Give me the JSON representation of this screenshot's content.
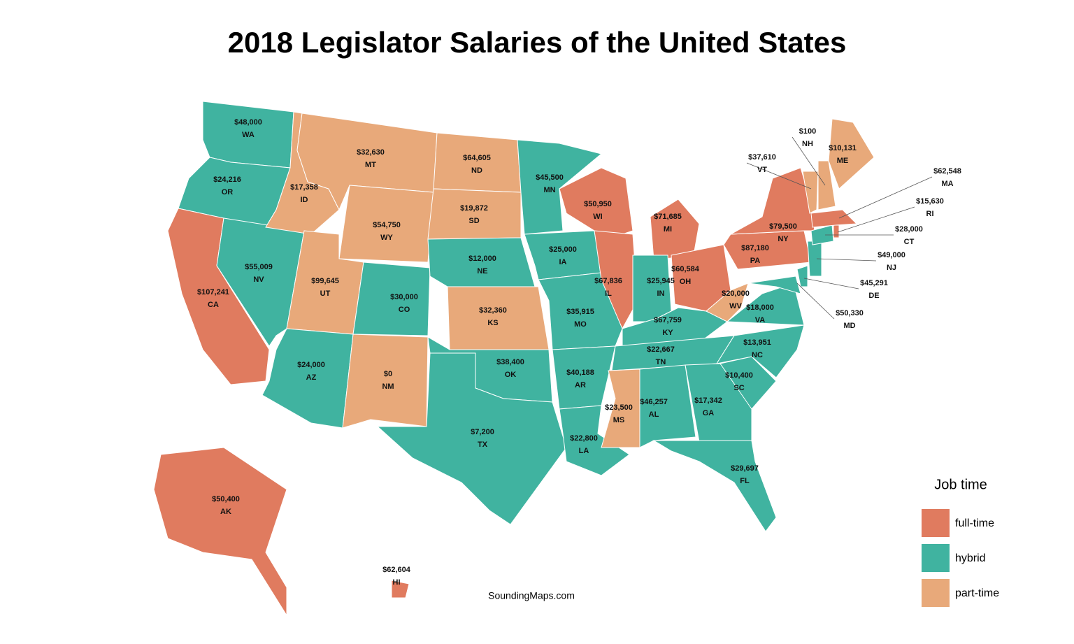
{
  "title": "2018 Legislator Salaries of the United States",
  "credit": "SoundingMaps.com",
  "legend": {
    "title": "Job time",
    "items": [
      {
        "label": "full-time",
        "color": "#e07b5f"
      },
      {
        "label": "hybrid",
        "color": "#40b3a0"
      },
      {
        "label": "part-time",
        "color": "#e8a97a"
      }
    ]
  },
  "states": [
    {
      "abbr": "WA",
      "salary": "$48,000",
      "job_time": "hybrid"
    },
    {
      "abbr": "OR",
      "salary": "$24,216",
      "job_time": "hybrid"
    },
    {
      "abbr": "CA",
      "salary": "$107,241",
      "job_time": "full-time"
    },
    {
      "abbr": "NV",
      "salary": "$55,009",
      "job_time": "hybrid"
    },
    {
      "abbr": "ID",
      "salary": "$17,358",
      "job_time": "part-time"
    },
    {
      "abbr": "MT",
      "salary": "$32,630",
      "job_time": "part-time"
    },
    {
      "abbr": "WY",
      "salary": "$54,750",
      "job_time": "part-time"
    },
    {
      "abbr": "UT",
      "salary": "$99,645",
      "job_time": "part-time"
    },
    {
      "abbr": "CO",
      "salary": "$30,000",
      "job_time": "hybrid"
    },
    {
      "abbr": "AZ",
      "salary": "$24,000",
      "job_time": "hybrid"
    },
    {
      "abbr": "NM",
      "salary": "$0",
      "job_time": "part-time"
    },
    {
      "abbr": "ND",
      "salary": "$64,605",
      "job_time": "part-time"
    },
    {
      "abbr": "SD",
      "salary": "$19,872",
      "job_time": "part-time"
    },
    {
      "abbr": "NE",
      "salary": "$12,000",
      "job_time": "hybrid"
    },
    {
      "abbr": "KS",
      "salary": "$32,360",
      "job_time": "part-time"
    },
    {
      "abbr": "OK",
      "salary": "$38,400",
      "job_time": "hybrid"
    },
    {
      "abbr": "TX",
      "salary": "$7,200",
      "job_time": "hybrid"
    },
    {
      "abbr": "MN",
      "salary": "$45,500",
      "job_time": "hybrid"
    },
    {
      "abbr": "IA",
      "salary": "$25,000",
      "job_time": "hybrid"
    },
    {
      "abbr": "MO",
      "salary": "$35,915",
      "job_time": "hybrid"
    },
    {
      "abbr": "AR",
      "salary": "$40,188",
      "job_time": "hybrid"
    },
    {
      "abbr": "LA",
      "salary": "$22,800",
      "job_time": "hybrid"
    },
    {
      "abbr": "WI",
      "salary": "$50,950",
      "job_time": "full-time"
    },
    {
      "abbr": "IL",
      "salary": "$67,836",
      "job_time": "full-time"
    },
    {
      "abbr": "MI",
      "salary": "$71,685",
      "job_time": "full-time"
    },
    {
      "abbr": "IN",
      "salary": "$25,945",
      "job_time": "hybrid"
    },
    {
      "abbr": "OH",
      "salary": "$60,584",
      "job_time": "full-time"
    },
    {
      "abbr": "KY",
      "salary": "$67,759",
      "job_time": "hybrid"
    },
    {
      "abbr": "TN",
      "salary": "$22,667",
      "job_time": "hybrid"
    },
    {
      "abbr": "MS",
      "salary": "$23,500",
      "job_time": "part-time"
    },
    {
      "abbr": "AL",
      "salary": "$46,257",
      "job_time": "hybrid"
    },
    {
      "abbr": "GA",
      "salary": "$17,342",
      "job_time": "hybrid"
    },
    {
      "abbr": "FL",
      "salary": "$29,697",
      "job_time": "hybrid"
    },
    {
      "abbr": "SC",
      "salary": "$10,400",
      "job_time": "hybrid"
    },
    {
      "abbr": "NC",
      "salary": "$13,951",
      "job_time": "hybrid"
    },
    {
      "abbr": "VA",
      "salary": "$18,000",
      "job_time": "hybrid"
    },
    {
      "abbr": "WV",
      "salary": "$20,000",
      "job_time": "part-time"
    },
    {
      "abbr": "PA",
      "salary": "$87,180",
      "job_time": "full-time"
    },
    {
      "abbr": "NY",
      "salary": "$79,500",
      "job_time": "full-time"
    },
    {
      "abbr": "MD",
      "salary": "$50,330",
      "job_time": "hybrid"
    },
    {
      "abbr": "DE",
      "salary": "$45,291",
      "job_time": "hybrid"
    },
    {
      "abbr": "NJ",
      "salary": "$49,000",
      "job_time": "hybrid"
    },
    {
      "abbr": "CT",
      "salary": "$28,000",
      "job_time": "hybrid"
    },
    {
      "abbr": "RI",
      "salary": "$15,630",
      "job_time": "full-time"
    },
    {
      "abbr": "MA",
      "salary": "$62,548",
      "job_time": "full-time"
    },
    {
      "abbr": "VT",
      "salary": "$37,610",
      "job_time": "part-time"
    },
    {
      "abbr": "NH",
      "salary": "$100",
      "job_time": "part-time"
    },
    {
      "abbr": "ME",
      "salary": "$10,131",
      "job_time": "part-time"
    },
    {
      "abbr": "AK",
      "salary": "$50,400",
      "job_time": "full-time"
    },
    {
      "abbr": "HI",
      "salary": "$62,604",
      "job_time": "full-time"
    }
  ]
}
